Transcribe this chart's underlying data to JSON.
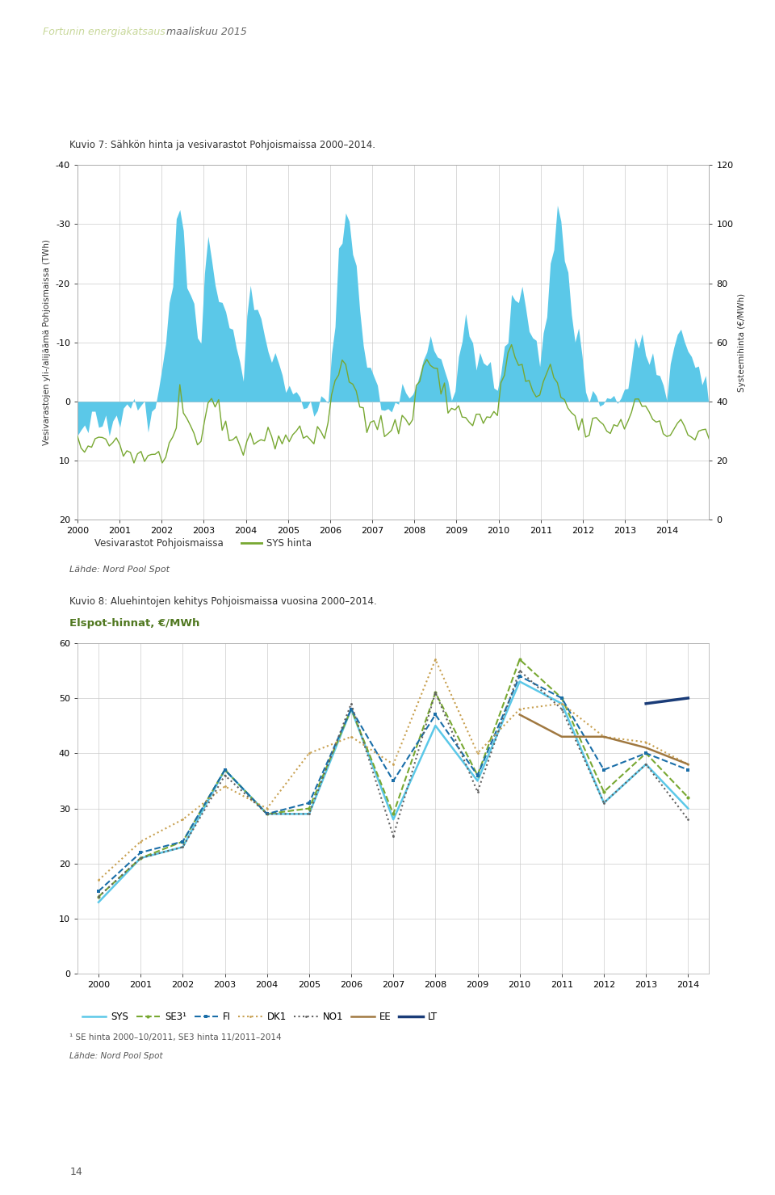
{
  "page_title_part1": "Fortunin energiakatsaus",
  "page_title_part2": " maaliskuu 2015",
  "page_title_color1": "#c8d89a",
  "page_title_color2": "#666666",
  "page_number": "14",
  "chart1_title": "Kuvio 7: Sähkön hinta ja vesivarastot Pohjoismaissa 2000–2014.",
  "chart1_ylabel_left": "Vesivarastojen yli-/alijäämä Pohjoismaissa (TWh)",
  "chart1_ylabel_right": "Systeemihinta (€/MWh)",
  "chart1_yticks_left": [
    -40,
    -30,
    -20,
    -10,
    0,
    10,
    20
  ],
  "chart1_yticks_right": [
    0,
    20,
    40,
    60,
    80,
    100,
    120
  ],
  "chart1_bar_color": "#5bc8e8",
  "chart1_line_color": "#78a832",
  "chart1_legend_bar": "Vesivarastot Pohjoismaissa",
  "chart1_legend_line": "SYS hinta",
  "chart1_source": "Lähde: Nord Pool Spot",
  "chart2_title": "Kuvio 8: Aluehintojen kehitys Pohjoismaissa vuosina 2000–2014.",
  "chart2_subtitle": "Elspot-hinnat, €/MWh",
  "chart2_ylim": [
    0,
    60
  ],
  "chart2_yticks": [
    0,
    10,
    20,
    30,
    40,
    50,
    60
  ],
  "chart2_source1": "¹ SE hinta 2000–10/2011, SE3 hinta 11/2011–2014",
  "chart2_source2": "Lähde: Nord Pool Spot",
  "chart2_years": [
    2000,
    2001,
    2002,
    2003,
    2004,
    2005,
    2006,
    2007,
    2008,
    2009,
    2010,
    2011,
    2012,
    2013,
    2014
  ],
  "chart2_SYS": [
    13,
    21,
    23,
    37,
    29,
    29,
    48,
    28,
    45,
    35,
    53,
    49,
    31,
    38,
    30
  ],
  "chart2_SE3": [
    14,
    21,
    24,
    37,
    29,
    30,
    48,
    29,
    51,
    36,
    57,
    50,
    33,
    40,
    32
  ],
  "chart2_FI": [
    15,
    22,
    24,
    37,
    29,
    31,
    48,
    35,
    47,
    36,
    54,
    50,
    37,
    40,
    37
  ],
  "chart2_DK1": [
    17,
    24,
    28,
    34,
    30,
    40,
    43,
    38,
    57,
    40,
    48,
    49,
    43,
    42,
    38
  ],
  "chart2_NO1": [
    14,
    21,
    23,
    36,
    29,
    29,
    49,
    25,
    51,
    33,
    55,
    48,
    31,
    38,
    28
  ],
  "chart2_EE": [
    null,
    null,
    null,
    null,
    null,
    null,
    null,
    null,
    null,
    null,
    47,
    43,
    43,
    41,
    38
  ],
  "chart2_LT": [
    null,
    null,
    null,
    null,
    null,
    null,
    null,
    null,
    null,
    null,
    null,
    null,
    null,
    49,
    50
  ],
  "chart2_SYS_color": "#5bc8e8",
  "chart2_SE3_color": "#78a832",
  "chart2_FI_color": "#1a6ea8",
  "chart2_DK1_color": "#c8a050",
  "chart2_NO1_color": "#606060",
  "chart2_EE_color": "#a07840",
  "chart2_LT_color": "#1a3c78"
}
